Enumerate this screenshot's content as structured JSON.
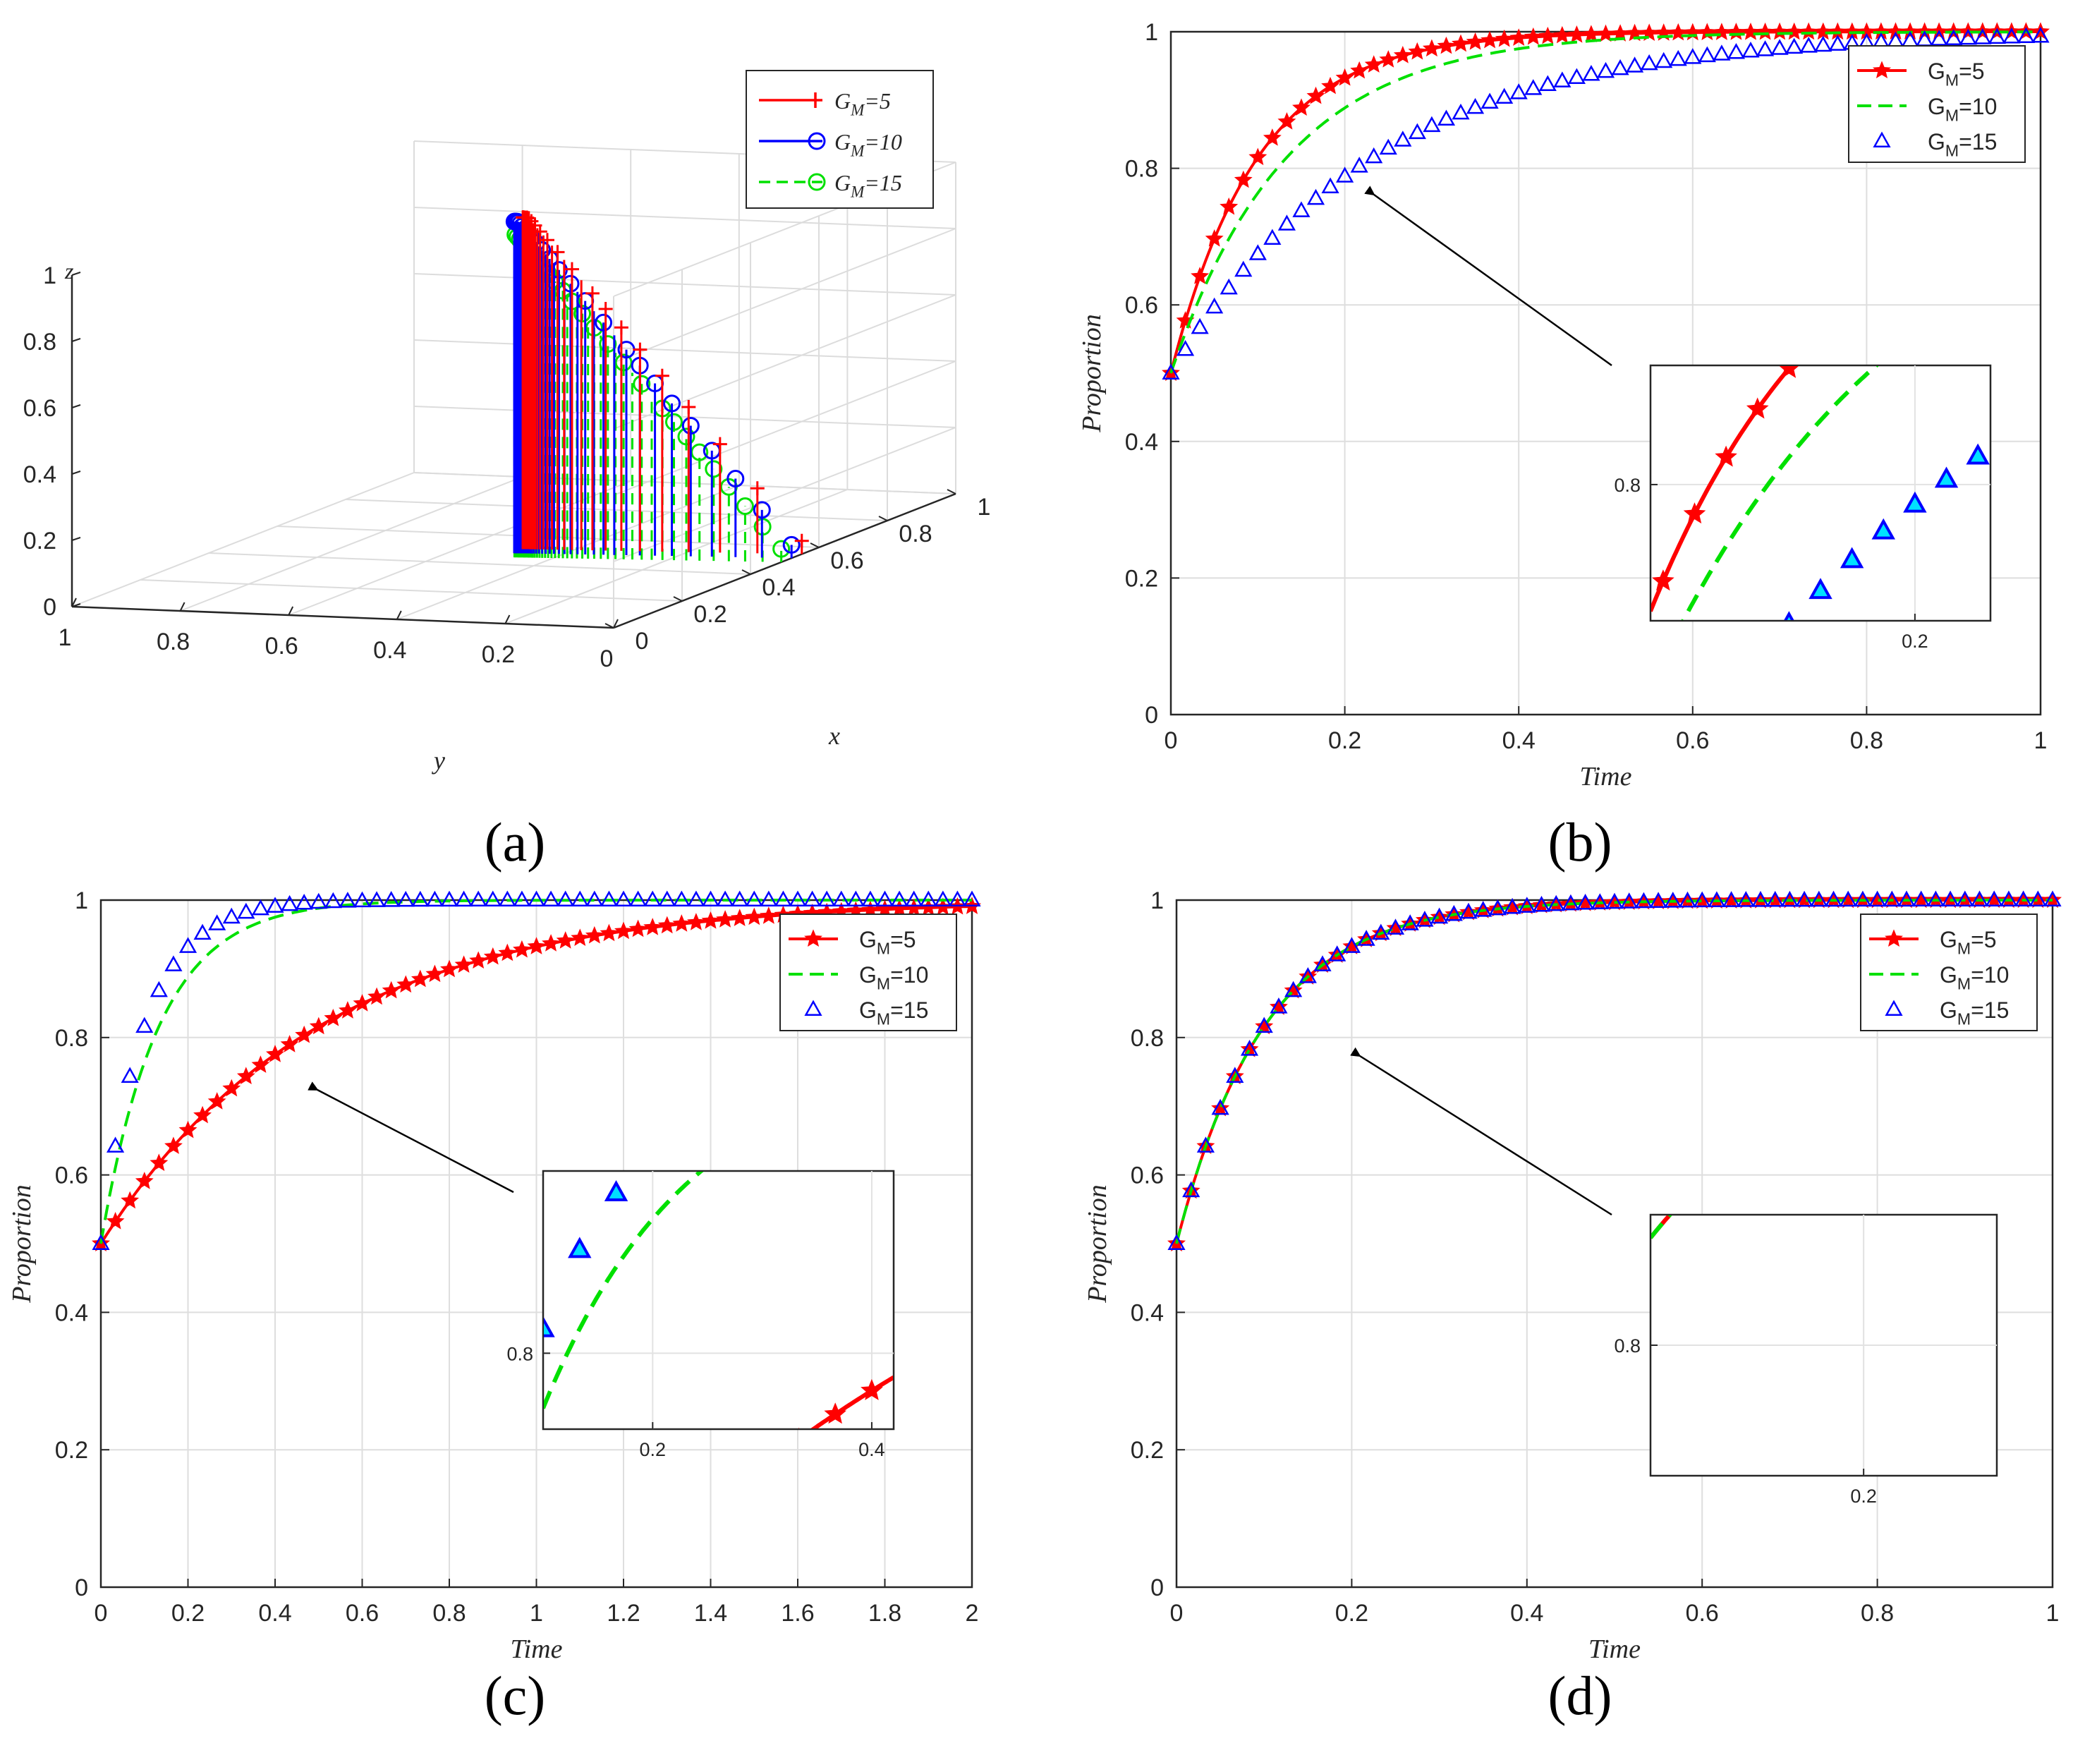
{
  "figure": {
    "panel_labels": [
      "(a)",
      "(b)",
      "(c)",
      "(d)"
    ]
  },
  "colors": {
    "red": "#ff0000",
    "green": "#00e000",
    "blue": "#0000ff",
    "grid": "#d9d9d9",
    "axis": "#262626",
    "arrow": "#000000"
  },
  "chart_data": [
    {
      "id": "a",
      "type": "scatter",
      "subtype": "3d-stem",
      "xlabel": "x",
      "ylabel": "y",
      "zlabel": "z",
      "xlim": [
        0,
        1
      ],
      "ylim": [
        0,
        1
      ],
      "zlim": [
        0,
        1
      ],
      "xticks": [
        "0",
        "0.2",
        "0.4",
        "0.6",
        "0.8",
        "1"
      ],
      "yticks": [
        "1",
        "0.8",
        "0.6",
        "0.4",
        "0.2",
        "0"
      ],
      "zticks": [
        "0",
        "0.2",
        "0.4",
        "0.6",
        "0.8",
        "1"
      ],
      "legend": {
        "location": "top-right",
        "entries": [
          {
            "label_base": "G",
            "label_sub": "M",
            "label_tail": "=5",
            "style": "solid-plus",
            "color": "#ff0000"
          },
          {
            "label_base": "G",
            "label_sub": "M",
            "label_tail": "=10",
            "style": "solid-circle",
            "color": "#0000ff"
          },
          {
            "label_base": "G",
            "label_sub": "M",
            "label_tail": "=15",
            "style": "dashed-circle",
            "color": "#00e000"
          }
        ]
      },
      "series": [
        {
          "name": "G_M=5",
          "color": "#ff0000",
          "marker": "plus",
          "dashed": false,
          "rate": 6.5
        },
        {
          "name": "G_M=10",
          "color": "#0000ff",
          "marker": "circle",
          "dashed": false,
          "rate": 4.2
        },
        {
          "name": "G_M=15",
          "color": "#00e000",
          "marker": "circle",
          "dashed": true,
          "rate": 2.6
        }
      ]
    },
    {
      "id": "b",
      "type": "line",
      "xlabel": "Time",
      "ylabel": "Proportion",
      "xlim": [
        0,
        1
      ],
      "ylim": [
        0,
        1
      ],
      "xticks": [
        "0",
        "0.2",
        "0.4",
        "0.6",
        "0.8",
        "1"
      ],
      "yticks": [
        "0",
        "0.2",
        "0.4",
        "0.6",
        "0.8",
        "1"
      ],
      "legend": {
        "location": "top-right",
        "entries": [
          {
            "label_base": "G",
            "label_sub": "M",
            "label_tail": "=5",
            "style": "solid-star",
            "color": "#ff0000"
          },
          {
            "label_base": "G",
            "label_sub": "M",
            "label_tail": "=10",
            "style": "dashed",
            "color": "#00e000"
          },
          {
            "label_base": "G",
            "label_sub": "M",
            "label_tail": "=15",
            "style": "triangle",
            "color": "#0000ff"
          }
        ]
      },
      "series": [
        {
          "name": "G_M=5",
          "color": "#ff0000",
          "style": "solid-star",
          "rate": 10
        },
        {
          "name": "G_M=10",
          "color": "#00e000",
          "style": "dashed",
          "rate": 7.5
        },
        {
          "name": "G_M=15",
          "color": "#0000ff",
          "style": "triangle",
          "rate": 4.3
        }
      ],
      "inset": {
        "xlim": [
          0.06,
          0.24
        ],
        "ylim": [
          0.72,
          0.87
        ],
        "xtick_values": [
          0.2
        ],
        "ytick_values": [
          0.8
        ],
        "xticks": [
          "0.2"
        ],
        "yticks": [
          "0.8"
        ]
      }
    },
    {
      "id": "c",
      "type": "line",
      "xlabel": "Time",
      "ylabel": "Proportion",
      "xlim": [
        0,
        2
      ],
      "ylim": [
        0,
        1
      ],
      "xticks": [
        "0",
        "0.2",
        "0.4",
        "0.6",
        "0.8",
        "1",
        "1.2",
        "1.4",
        "1.6",
        "1.8",
        "2"
      ],
      "yticks": [
        "0",
        "0.2",
        "0.4",
        "0.6",
        "0.8",
        "1"
      ],
      "legend": {
        "location": "top-right",
        "entries": [
          {
            "label_base": "G",
            "label_sub": "M",
            "label_tail": "=5",
            "style": "solid-star",
            "color": "#ff0000"
          },
          {
            "label_base": "G",
            "label_sub": "M",
            "label_tail": "=10",
            "style": "dashed",
            "color": "#00e000"
          },
          {
            "label_base": "G",
            "label_sub": "M",
            "label_tail": "=15",
            "style": "triangle",
            "color": "#0000ff"
          }
        ]
      },
      "series": [
        {
          "name": "G_M=5",
          "color": "#ff0000",
          "style": "solid-star",
          "rate": 2.0
        },
        {
          "name": "G_M=10",
          "color": "#00e000",
          "style": "dashed",
          "rate": 7.5
        },
        {
          "name": "G_M=15",
          "color": "#0000ff",
          "style": "triangle",
          "rate": 10
        }
      ],
      "inset": {
        "xlim": [
          0.1,
          0.42
        ],
        "ylim": [
          0.75,
          0.92
        ],
        "xtick_values": [
          0.2,
          0.4
        ],
        "ytick_values": [
          0.8
        ],
        "xticks": [
          "0.2",
          "0.4"
        ],
        "yticks": [
          "0.8"
        ]
      }
    },
    {
      "id": "d",
      "type": "line",
      "xlabel": "Time",
      "ylabel": "Proportion",
      "xlim": [
        0,
        1
      ],
      "ylim": [
        0,
        1
      ],
      "xticks": [
        "0",
        "0.2",
        "0.4",
        "0.6",
        "0.8",
        "1"
      ],
      "yticks": [
        "0",
        "0.2",
        "0.4",
        "0.6",
        "0.8",
        "1"
      ],
      "legend": {
        "location": "top-right",
        "entries": [
          {
            "label_base": "G",
            "label_sub": "M",
            "label_tail": "=5",
            "style": "solid-star",
            "color": "#ff0000"
          },
          {
            "label_base": "G",
            "label_sub": "M",
            "label_tail": "=10",
            "style": "dashed",
            "color": "#00e000"
          },
          {
            "label_base": "G",
            "label_sub": "M",
            "label_tail": "=15",
            "style": "triangle",
            "color": "#0000ff"
          }
        ]
      },
      "series": [
        {
          "name": "G_M=5",
          "color": "#ff0000",
          "style": "solid-star",
          "rate": 10
        },
        {
          "name": "G_M=10",
          "color": "#00e000",
          "style": "dashed",
          "rate": 10
        },
        {
          "name": "G_M=15",
          "color": "#0000ff",
          "style": "triangle",
          "rate": 10
        }
      ],
      "inset": {
        "xlim": [
          0.12,
          0.25
        ],
        "ylim": [
          0.74,
          0.86
        ],
        "xtick_values": [
          0.2
        ],
        "ytick_values": [
          0.8
        ],
        "xticks": [
          "0.2"
        ],
        "yticks": [
          "0.8"
        ]
      }
    }
  ]
}
